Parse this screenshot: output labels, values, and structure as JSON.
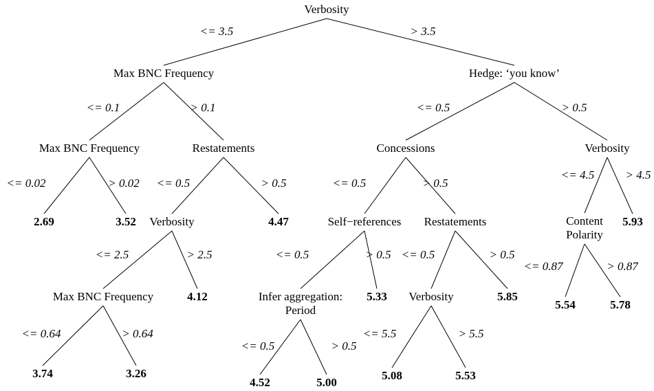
{
  "nodes": [
    {
      "lines": [
        "Verbosity"
      ]
    },
    {
      "lines": [
        "Max BNC Frequency"
      ]
    },
    {
      "lines": [
        "Hedge: ‘you know’"
      ]
    },
    {
      "lines": [
        "Max BNC Frequency"
      ]
    },
    {
      "lines": [
        "Restatements"
      ]
    },
    {
      "lines": [
        "Concessions"
      ]
    },
    {
      "lines": [
        "Verbosity"
      ]
    },
    {
      "lines": [
        "2.69"
      ]
    },
    {
      "lines": [
        "3.52"
      ]
    },
    {
      "lines": [
        "Verbosity"
      ]
    },
    {
      "lines": [
        "4.47"
      ]
    },
    {
      "lines": [
        "Self−references"
      ]
    },
    {
      "lines": [
        "Restatements"
      ]
    },
    {
      "lines": [
        "Content",
        "Polarity"
      ]
    },
    {
      "lines": [
        "5.93"
      ]
    },
    {
      "lines": [
        "Max BNC Frequency"
      ]
    },
    {
      "lines": [
        "4.12"
      ]
    },
    {
      "lines": [
        "Infer aggregation:",
        "Period"
      ]
    },
    {
      "lines": [
        "5.33"
      ]
    },
    {
      "lines": [
        "Verbosity"
      ]
    },
    {
      "lines": [
        "5.85"
      ]
    },
    {
      "lines": [
        "5.54"
      ]
    },
    {
      "lines": [
        "5.78"
      ]
    },
    {
      "lines": [
        "3.74"
      ]
    },
    {
      "lines": [
        "3.26"
      ]
    },
    {
      "lines": [
        "4.52"
      ]
    },
    {
      "lines": [
        "5.00"
      ]
    },
    {
      "lines": [
        "5.08"
      ]
    },
    {
      "lines": [
        "5.53"
      ]
    }
  ],
  "edges": [
    {
      "from": 0,
      "to": 1,
      "label": "<= 3.5"
    },
    {
      "from": 0,
      "to": 2,
      "label": "> 3.5"
    },
    {
      "from": 1,
      "to": 3,
      "label": "<= 0.1"
    },
    {
      "from": 1,
      "to": 4,
      "label": "> 0.1"
    },
    {
      "from": 2,
      "to": 5,
      "label": "<= 0.5"
    },
    {
      "from": 2,
      "to": 6,
      "label": "> 0.5"
    },
    {
      "from": 3,
      "to": 7,
      "label": "<= 0.02"
    },
    {
      "from": 3,
      "to": 8,
      "label": "> 0.02"
    },
    {
      "from": 4,
      "to": 9,
      "label": "<= 0.5"
    },
    {
      "from": 4,
      "to": 10,
      "label": "> 0.5"
    },
    {
      "from": 5,
      "to": 11,
      "label": "<= 0.5"
    },
    {
      "from": 5,
      "to": 12,
      "label": "> 0.5"
    },
    {
      "from": 6,
      "to": 13,
      "label": "<= 4.5"
    },
    {
      "from": 6,
      "to": 14,
      "label": "> 4.5"
    },
    {
      "from": 9,
      "to": 15,
      "label": "<= 2.5"
    },
    {
      "from": 9,
      "to": 16,
      "label": "> 2.5"
    },
    {
      "from": 11,
      "to": 17,
      "label": "<= 0.5"
    },
    {
      "from": 11,
      "to": 18,
      "label": "> 0.5"
    },
    {
      "from": 12,
      "to": 19,
      "label": "<= 0.5"
    },
    {
      "from": 12,
      "to": 20,
      "label": "> 0.5"
    },
    {
      "from": 13,
      "to": 21,
      "label": "<= 0.87"
    },
    {
      "from": 13,
      "to": 22,
      "label": "> 0.87"
    },
    {
      "from": 15,
      "to": 23,
      "label": "<= 0.64"
    },
    {
      "from": 15,
      "to": 24,
      "label": "> 0.64"
    },
    {
      "from": 17,
      "to": 25,
      "label": "<= 0.5"
    },
    {
      "from": 17,
      "to": 26,
      "label": "> 0.5"
    },
    {
      "from": 19,
      "to": 27,
      "label": "<= 5.5"
    },
    {
      "from": 19,
      "to": 28,
      "label": "> 5.5"
    }
  ]
}
